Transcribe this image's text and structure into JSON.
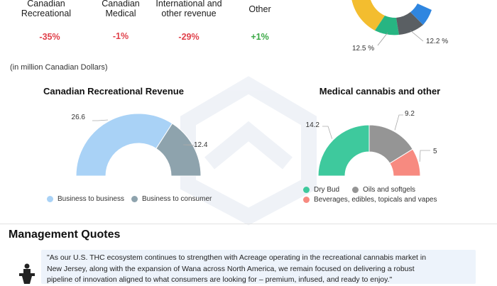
{
  "segments": [
    {
      "label_l1": "Canadian",
      "label_l2": "Recreational",
      "change": "-35%",
      "tone": "neg"
    },
    {
      "label_l1": "Canadian",
      "label_l2": "Medical",
      "change": "-1%",
      "tone": "neg"
    },
    {
      "label_l1": "International and",
      "label_l2": "other revenue",
      "change": "-29%",
      "tone": "neg"
    },
    {
      "label_l1": "Other",
      "label_l2": "",
      "change": "+1%",
      "tone": "pos"
    }
  ],
  "top_pie_labels": {
    "left": "12.5 %",
    "right": "12.2 %"
  },
  "units_note": "(in million Canadian Dollars)",
  "colors": {
    "negative": "#e0404a",
    "positive": "#3aa845",
    "b2b": "#a9d2f6",
    "b2c": "#8ea3ad",
    "dry_bud": "#3ec99d",
    "oils": "#959595",
    "beverages": "#f78a80",
    "pie_yellow": "#f3bd2f",
    "pie_blue": "#2f86e0",
    "pie_green": "#27b582",
    "pie_dark": "#5a5f63",
    "quote_bg": "#edf3fb"
  },
  "chart_data": [
    {
      "type": "pie",
      "title": "Canadian Recreational Revenue",
      "categories": [
        "Business to business",
        "Business to consumer"
      ],
      "values": [
        26.6,
        12.4
      ],
      "value_labels": [
        "26.6",
        "12.4"
      ],
      "legend": [
        "Business to business",
        "Business to consumer"
      ],
      "legend_position": "bottom"
    },
    {
      "type": "pie",
      "title": "Medical cannabis and other",
      "categories": [
        "Dry Bud",
        "Oils and softgels",
        "Beverages, edibles, topicals and vapes"
      ],
      "values": [
        14.2,
        9.2,
        5
      ],
      "value_labels": [
        "14.2",
        "9.2",
        "5"
      ],
      "legend": [
        "Dry Bud",
        "Oils and softgels",
        "Beverages, edibles, topicals and vapes"
      ],
      "legend_position": "bottom"
    }
  ],
  "management": {
    "title": "Management Quotes",
    "quote_lines": [
      "\"As our U.S. THC ecosystem continues to strengthen with Acreage operating in the recreational cannabis market in",
      "New Jersey, along with the expansion of Wana across North America, we remain focused on delivering a robust",
      "pipeline of innovation aligned to what consumers are looking for – premium, infused, and ready to enjoy.\""
    ],
    "icon": "speaker-podium-icon"
  }
}
